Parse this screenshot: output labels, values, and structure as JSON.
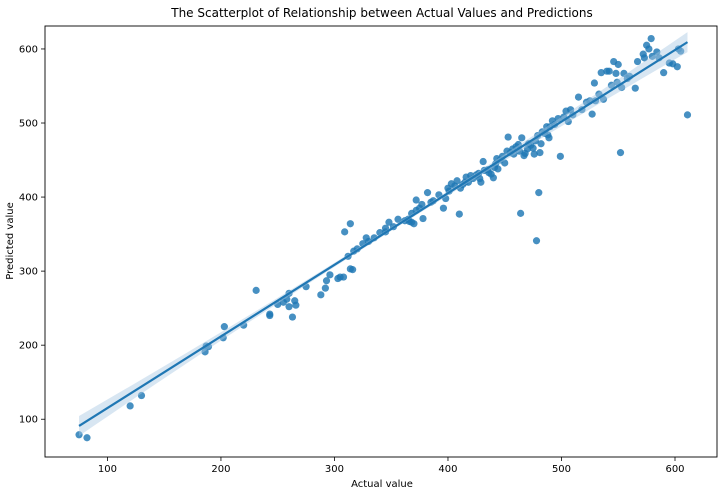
{
  "chart_data": {
    "type": "scatter",
    "title": "The Scatterplot of Relationship between Actual Values and Predictions",
    "xlabel": "Actual value",
    "ylabel": "Predicted value",
    "xlim": [
      45,
      637
    ],
    "ylim": [
      49,
      631
    ],
    "xticks": [
      100,
      200,
      300,
      400,
      500,
      600
    ],
    "yticks": [
      100,
      200,
      300,
      400,
      500,
      600
    ],
    "grid": false,
    "point_color": "#1f77b4",
    "line_color": "#1f77b4",
    "band_color": "#a9c8e3",
    "regression": {
      "slope": 0.967,
      "intercept": 18.4,
      "x_range": [
        75,
        611
      ]
    },
    "points": [
      [
        75,
        79
      ],
      [
        82,
        75
      ],
      [
        120,
        118
      ],
      [
        130,
        132
      ],
      [
        186,
        191
      ],
      [
        187,
        199
      ],
      [
        189,
        198
      ],
      [
        202,
        210
      ],
      [
        203,
        225
      ],
      [
        220,
        227
      ],
      [
        231,
        274
      ],
      [
        243,
        240
      ],
      [
        243,
        242
      ],
      [
        250,
        255
      ],
      [
        255,
        258
      ],
      [
        258,
        262
      ],
      [
        260,
        252
      ],
      [
        260,
        270
      ],
      [
        263,
        238
      ],
      [
        265,
        260
      ],
      [
        266,
        254
      ],
      [
        275,
        279
      ],
      [
        288,
        268
      ],
      [
        292,
        277
      ],
      [
        293,
        287
      ],
      [
        296,
        295
      ],
      [
        303,
        290
      ],
      [
        305,
        292
      ],
      [
        308,
        292
      ],
      [
        309,
        353
      ],
      [
        312,
        320
      ],
      [
        314,
        303
      ],
      [
        314,
        364
      ],
      [
        316,
        302
      ],
      [
        317,
        327
      ],
      [
        320,
        330
      ],
      [
        325,
        337
      ],
      [
        328,
        345
      ],
      [
        330,
        340
      ],
      [
        335,
        345
      ],
      [
        340,
        352
      ],
      [
        345,
        353
      ],
      [
        345,
        358
      ],
      [
        348,
        366
      ],
      [
        352,
        360
      ],
      [
        356,
        370
      ],
      [
        362,
        368
      ],
      [
        365,
        370
      ],
      [
        366,
        367
      ],
      [
        368,
        366
      ],
      [
        368,
        378
      ],
      [
        370,
        364
      ],
      [
        372,
        382
      ],
      [
        372,
        396
      ],
      [
        375,
        385
      ],
      [
        377,
        390
      ],
      [
        378,
        371
      ],
      [
        382,
        406
      ],
      [
        385,
        393
      ],
      [
        387,
        395
      ],
      [
        392,
        403
      ],
      [
        396,
        385
      ],
      [
        398,
        398
      ],
      [
        400,
        412
      ],
      [
        401,
        408
      ],
      [
        403,
        418
      ],
      [
        406,
        415
      ],
      [
        408,
        422
      ],
      [
        410,
        377
      ],
      [
        411,
        412
      ],
      [
        413,
        417
      ],
      [
        415,
        420
      ],
      [
        416,
        427
      ],
      [
        418,
        420
      ],
      [
        420,
        429
      ],
      [
        422,
        425
      ],
      [
        425,
        430
      ],
      [
        427,
        432
      ],
      [
        428,
        425
      ],
      [
        429,
        420
      ],
      [
        431,
        448
      ],
      [
        432,
        436
      ],
      [
        435,
        437
      ],
      [
        436,
        433
      ],
      [
        438,
        431
      ],
      [
        440,
        426
      ],
      [
        441,
        440
      ],
      [
        442,
        445
      ],
      [
        443,
        452
      ],
      [
        444,
        438
      ],
      [
        446,
        450
      ],
      [
        448,
        455
      ],
      [
        450,
        446
      ],
      [
        452,
        462
      ],
      [
        453,
        481
      ],
      [
        455,
        460
      ],
      [
        457,
        465
      ],
      [
        458,
        458
      ],
      [
        460,
        468
      ],
      [
        462,
        471
      ],
      [
        463,
        462
      ],
      [
        464,
        378
      ],
      [
        465,
        480
      ],
      [
        467,
        456
      ],
      [
        468,
        459
      ],
      [
        470,
        465
      ],
      [
        471,
        472
      ],
      [
        473,
        470
      ],
      [
        475,
        466
      ],
      [
        476,
        458
      ],
      [
        477,
        476
      ],
      [
        478,
        341
      ],
      [
        479,
        483
      ],
      [
        480,
        406
      ],
      [
        481,
        460
      ],
      [
        482,
        472
      ],
      [
        483,
        488
      ],
      [
        485,
        486
      ],
      [
        487,
        495
      ],
      [
        488,
        484
      ],
      [
        489,
        480
      ],
      [
        490,
        495
      ],
      [
        492,
        503
      ],
      [
        494,
        498
      ],
      [
        497,
        506
      ],
      [
        499,
        455
      ],
      [
        502,
        508
      ],
      [
        504,
        516
      ],
      [
        506,
        502
      ],
      [
        508,
        518
      ],
      [
        510,
        511
      ],
      [
        515,
        535
      ],
      [
        518,
        518
      ],
      [
        522,
        528
      ],
      [
        525,
        530
      ],
      [
        527,
        512
      ],
      [
        529,
        554
      ],
      [
        530,
        530
      ],
      [
        533,
        539
      ],
      [
        535,
        568
      ],
      [
        537,
        532
      ],
      [
        540,
        570
      ],
      [
        542,
        570
      ],
      [
        544,
        551
      ],
      [
        546,
        583
      ],
      [
        548,
        567
      ],
      [
        549,
        555
      ],
      [
        550,
        579
      ],
      [
        552,
        460
      ],
      [
        553,
        548
      ],
      [
        555,
        567
      ],
      [
        558,
        560
      ],
      [
        560,
        563
      ],
      [
        565,
        547
      ],
      [
        567,
        583
      ],
      [
        572,
        593
      ],
      [
        573,
        588
      ],
      [
        575,
        605
      ],
      [
        577,
        600
      ],
      [
        579,
        614
      ],
      [
        580,
        590
      ],
      [
        584,
        596
      ],
      [
        586,
        588
      ],
      [
        590,
        568
      ],
      [
        595,
        581
      ],
      [
        598,
        580
      ],
      [
        602,
        576
      ],
      [
        603,
        600
      ],
      [
        605,
        597
      ],
      [
        611,
        511
      ]
    ]
  }
}
